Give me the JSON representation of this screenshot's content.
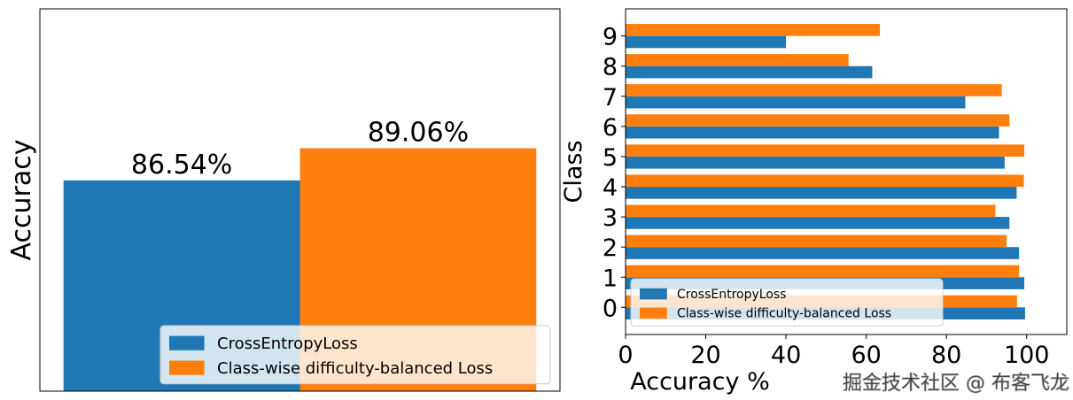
{
  "colors": {
    "series1": "#1f77b4",
    "series2": "#ff7f0e"
  },
  "watermark": "掘金技术社区 @ 布客飞龙",
  "chart_data": [
    {
      "type": "bar",
      "title": "",
      "xlabel": "",
      "ylabel": "Accuracy",
      "ylim": [
        70,
        100
      ],
      "xlim": [
        -0.6,
        1.6
      ],
      "grid": false,
      "show_ticks": false,
      "legend_position": "lower-right",
      "series": [
        {
          "name": "CrossEntropyLoss",
          "x": 0,
          "value": 86.54,
          "label": "86.54%"
        },
        {
          "name": "Class-wise difficulty-balanced Loss",
          "x": 1,
          "value": 89.06,
          "label": "89.06%"
        }
      ]
    },
    {
      "type": "bar",
      "orientation": "horizontal",
      "title": "",
      "xlabel": "Accuracy %",
      "ylabel": "Class",
      "xlim": [
        0,
        110
      ],
      "ylim": [
        -0.9,
        9.9
      ],
      "xticks": [
        0,
        20,
        40,
        60,
        80,
        100
      ],
      "categories": [
        "0",
        "1",
        "2",
        "3",
        "4",
        "5",
        "6",
        "7",
        "8",
        "9"
      ],
      "grid": false,
      "legend_position": "lower-left",
      "series": [
        {
          "name": "CrossEntropyLoss",
          "values": [
            99.6,
            99.4,
            98.1,
            95.7,
            97.5,
            94.5,
            93.1,
            84.7,
            61.5,
            40.0
          ]
        },
        {
          "name": "Class-wise difficulty-balanced Loss",
          "values": [
            97.6,
            98.1,
            95.0,
            92.2,
            99.3,
            99.4,
            95.7,
            93.8,
            55.6,
            63.4
          ]
        }
      ]
    }
  ]
}
